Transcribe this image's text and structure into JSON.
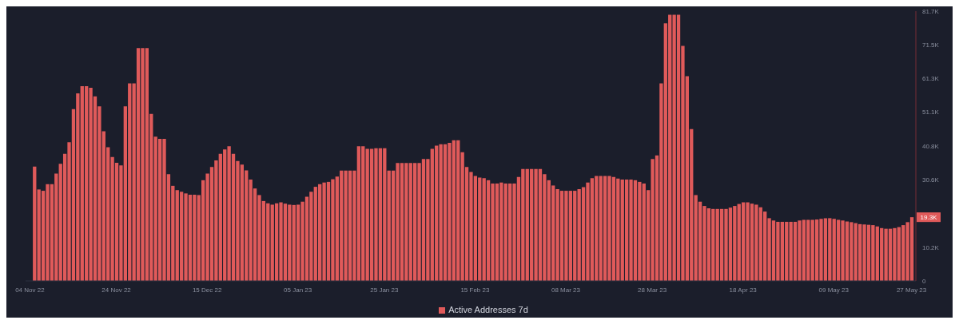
{
  "chart_data": {
    "type": "bar",
    "x": [
      "2022-11-05",
      "2022-11-06",
      "2022-11-07",
      "2022-11-08",
      "2022-11-09",
      "2022-11-10",
      "2022-11-11",
      "2022-11-12",
      "2022-11-13",
      "2022-11-14",
      "2022-11-15",
      "2022-11-16",
      "2022-11-17",
      "2022-11-18",
      "2022-11-19",
      "2022-11-20",
      "2022-11-21",
      "2022-11-22",
      "2022-11-23",
      "2022-11-24",
      "2022-11-25",
      "2022-11-26",
      "2022-11-27",
      "2022-11-28",
      "2022-11-29",
      "2022-11-30",
      "2022-12-01",
      "2022-12-02",
      "2022-12-03",
      "2022-12-04",
      "2022-12-05",
      "2022-12-06",
      "2022-12-07",
      "2022-12-08",
      "2022-12-09",
      "2022-12-10",
      "2022-12-11",
      "2022-12-12",
      "2022-12-13",
      "2022-12-14",
      "2022-12-15",
      "2022-12-16",
      "2022-12-17",
      "2022-12-18",
      "2022-12-19",
      "2022-12-20",
      "2022-12-21",
      "2022-12-22",
      "2022-12-23",
      "2022-12-24",
      "2022-12-25",
      "2022-12-26",
      "2022-12-27",
      "2022-12-28",
      "2022-12-29",
      "2022-12-30",
      "2022-12-31",
      "2023-01-01",
      "2023-01-02",
      "2023-01-03",
      "2023-01-04",
      "2023-01-05",
      "2023-01-06",
      "2023-01-07",
      "2023-01-08",
      "2023-01-09",
      "2023-01-10",
      "2023-01-11",
      "2023-01-12",
      "2023-01-13",
      "2023-01-14",
      "2023-01-15",
      "2023-01-16",
      "2023-01-17",
      "2023-01-18",
      "2023-01-19",
      "2023-01-20",
      "2023-01-21",
      "2023-01-22",
      "2023-01-23",
      "2023-01-24",
      "2023-01-25",
      "2023-01-26",
      "2023-01-27",
      "2023-01-28",
      "2023-01-29",
      "2023-01-30",
      "2023-01-31",
      "2023-02-01",
      "2023-02-02",
      "2023-02-03",
      "2023-02-04",
      "2023-02-05",
      "2023-02-06",
      "2023-02-07",
      "2023-02-08",
      "2023-02-09",
      "2023-02-10",
      "2023-02-11",
      "2023-02-12",
      "2023-02-13",
      "2023-02-14",
      "2023-02-15",
      "2023-02-16",
      "2023-02-17",
      "2023-02-18",
      "2023-02-19",
      "2023-02-20",
      "2023-02-21",
      "2023-02-22",
      "2023-02-23",
      "2023-02-24",
      "2023-02-25",
      "2023-02-26",
      "2023-02-27",
      "2023-02-28",
      "2023-03-01",
      "2023-03-02",
      "2023-03-03",
      "2023-03-04",
      "2023-03-05",
      "2023-03-06",
      "2023-03-07",
      "2023-03-08",
      "2023-03-09",
      "2023-03-10",
      "2023-03-11",
      "2023-03-12",
      "2023-03-13",
      "2023-03-14",
      "2023-03-15",
      "2023-03-16",
      "2023-03-17",
      "2023-03-18",
      "2023-03-19",
      "2023-03-20",
      "2023-03-21",
      "2023-03-22",
      "2023-03-23",
      "2023-03-24",
      "2023-03-25",
      "2023-03-26",
      "2023-03-27",
      "2023-03-28",
      "2023-03-29",
      "2023-03-30",
      "2023-03-31",
      "2023-04-01",
      "2023-04-02",
      "2023-04-03",
      "2023-04-04",
      "2023-04-05",
      "2023-04-06",
      "2023-04-07",
      "2023-04-08",
      "2023-04-09",
      "2023-04-10",
      "2023-04-11",
      "2023-04-12",
      "2023-04-13",
      "2023-04-14",
      "2023-04-15",
      "2023-04-16",
      "2023-04-17",
      "2023-04-18",
      "2023-04-19",
      "2023-04-20",
      "2023-04-21",
      "2023-04-22",
      "2023-04-23",
      "2023-04-24",
      "2023-04-25",
      "2023-04-26",
      "2023-04-27",
      "2023-04-28",
      "2023-04-29",
      "2023-04-30",
      "2023-05-01",
      "2023-05-02",
      "2023-05-03",
      "2023-05-04",
      "2023-05-05",
      "2023-05-06",
      "2023-05-07",
      "2023-05-08",
      "2023-05-09",
      "2023-05-10",
      "2023-05-11",
      "2023-05-12",
      "2023-05-13",
      "2023-05-14",
      "2023-05-15",
      "2023-05-16",
      "2023-05-17",
      "2023-05-18",
      "2023-05-19",
      "2023-05-20",
      "2023-05-21",
      "2023-05-22",
      "2023-05-23",
      "2023-05-24",
      "2023-05-25",
      "2023-05-26",
      "2023-05-27"
    ],
    "series": [
      {
        "name": "Active Addresses 7d",
        "color": "#e05a5a",
        "values": [
          34600,
          27700,
          27300,
          29300,
          29300,
          32500,
          35500,
          38500,
          42000,
          52000,
          56800,
          59000,
          59000,
          58500,
          55900,
          52900,
          45300,
          40500,
          37500,
          35800,
          35000,
          52900,
          59800,
          59800,
          70500,
          70500,
          70500,
          50600,
          43700,
          43000,
          43000,
          32300,
          28800,
          27500,
          27000,
          26500,
          26100,
          26100,
          26000,
          30500,
          32500,
          34500,
          36500,
          38500,
          39800,
          40800,
          38500,
          36300,
          35200,
          33500,
          30700,
          28000,
          26000,
          24200,
          23500,
          23100,
          23500,
          23800,
          23400,
          23100,
          23000,
          23100,
          24000,
          25500,
          27000,
          28500,
          29300,
          29800,
          30000,
          30800,
          31600,
          33400,
          33400,
          33400,
          33400,
          40800,
          40800,
          40000,
          40000,
          40200,
          40200,
          40200,
          33400,
          33400,
          35700,
          35700,
          35700,
          35700,
          35700,
          35700,
          36900,
          36900,
          40000,
          41000,
          41400,
          41400,
          41800,
          42600,
          42600,
          39000,
          34500,
          33000,
          31800,
          31300,
          31100,
          30500,
          29500,
          29500,
          29800,
          29500,
          29500,
          29500,
          31500,
          33900,
          33900,
          33900,
          33900,
          33900,
          32300,
          30500,
          28900,
          27800,
          27300,
          27300,
          27300,
          27300,
          27800,
          28400,
          29800,
          31100,
          31800,
          31800,
          31800,
          31800,
          31500,
          31000,
          30700,
          30700,
          30700,
          30500,
          30000,
          29500,
          27500,
          36900,
          38000,
          59800,
          78000,
          80600,
          80600,
          80600,
          71200,
          62000,
          46000,
          26000,
          24000,
          22700,
          22000,
          21800,
          21800,
          21800,
          21800,
          22200,
          22700,
          23300,
          23800,
          23800,
          23400,
          23100,
          22300,
          21000,
          19000,
          18300,
          17900,
          17900,
          17900,
          17900,
          17900,
          18300,
          18500,
          18500,
          18500,
          18600,
          18800,
          19000,
          19000,
          18800,
          18500,
          18300,
          18000,
          17800,
          17500,
          17200,
          17100,
          17000,
          16900,
          16500,
          16000,
          15800,
          15800,
          16000,
          16300,
          16900,
          17800,
          19300
        ]
      }
    ],
    "xlim": [
      "2022-11-03",
      "2023-05-28"
    ],
    "xticks": [
      {
        "value": "2022-11-04",
        "label": "04 Nov 22"
      },
      {
        "value": "2022-11-24",
        "label": "24 Nov 22"
      },
      {
        "value": "2022-12-15",
        "label": "15 Dec 22"
      },
      {
        "value": "2023-01-05",
        "label": "05 Jan 23"
      },
      {
        "value": "2023-01-25",
        "label": "25 Jan 23"
      },
      {
        "value": "2023-02-15",
        "label": "15 Feb 23"
      },
      {
        "value": "2023-03-08",
        "label": "08 Mar 23"
      },
      {
        "value": "2023-03-28",
        "label": "28 Mar 23"
      },
      {
        "value": "2023-04-18",
        "label": "18 Apr 23"
      },
      {
        "value": "2023-05-09",
        "label": "09 May 23"
      },
      {
        "value": "2023-05-27",
        "label": "27 May 23"
      }
    ],
    "ylim": [
      0,
      81700
    ],
    "yticks": [
      0,
      {
        "value": 10200,
        "label": "10.2K"
      },
      {
        "value": 30600,
        "label": "30.6K"
      },
      {
        "value": 40800,
        "label": "40.8K"
      },
      {
        "value": 51100,
        "label": "51.1K"
      },
      {
        "value": 61300,
        "label": "61.3K"
      },
      {
        "value": 71500,
        "label": "71.5K"
      },
      {
        "value": 81700,
        "label": "81.7K"
      }
    ],
    "annotations": [
      {
        "text": "19.3K",
        "x": "2023-05-27",
        "y": 19300
      }
    ],
    "legend": "bottom",
    "grid": false
  }
}
